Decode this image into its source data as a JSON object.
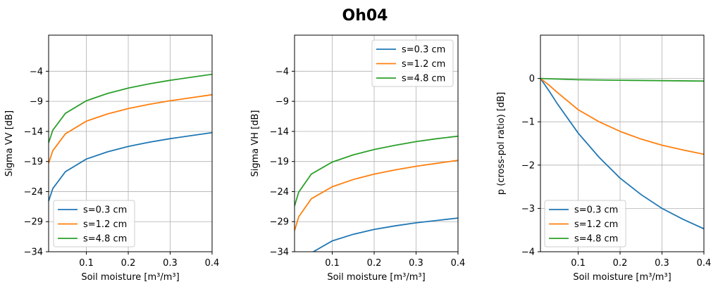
{
  "figure": {
    "suptitle": "Oh04"
  },
  "colors": {
    "s03": "#1f77b4",
    "s12": "#ff7f0e",
    "s48": "#2ca02c",
    "grid": "#b0b0b0"
  },
  "chart_data": [
    {
      "type": "line",
      "xlabel": "Soil moisture [m³/m³]",
      "ylabel": "Sigma VV [dB]",
      "xlim": [
        0.01,
        0.4
      ],
      "ylim": [
        -34,
        2
      ],
      "xticks": [
        0.1,
        0.2,
        0.3,
        0.4
      ],
      "yticks": [
        -34,
        -29,
        -24,
        -19,
        -14,
        -9,
        -4
      ],
      "grid": true,
      "legend_position": "lower-left",
      "series": [
        {
          "name": "s=0.3 cm",
          "color": "#1f77b4",
          "x": [
            0.01,
            0.02,
            0.05,
            0.1,
            0.15,
            0.2,
            0.25,
            0.3,
            0.35,
            0.4
          ],
          "y": [
            -25.6,
            -23.5,
            -20.7,
            -18.6,
            -17.4,
            -16.5,
            -15.8,
            -15.2,
            -14.7,
            -14.2
          ]
        },
        {
          "name": "s=1.2 cm",
          "color": "#ff7f0e",
          "x": [
            0.01,
            0.02,
            0.05,
            0.1,
            0.15,
            0.2,
            0.25,
            0.3,
            0.35,
            0.4
          ],
          "y": [
            -19.3,
            -17.2,
            -14.4,
            -12.3,
            -11.1,
            -10.2,
            -9.5,
            -8.9,
            -8.4,
            -7.9
          ]
        },
        {
          "name": "s=4.8 cm",
          "color": "#2ca02c",
          "x": [
            0.01,
            0.02,
            0.05,
            0.1,
            0.15,
            0.2,
            0.25,
            0.3,
            0.35,
            0.4
          ],
          "y": [
            -15.9,
            -13.8,
            -11.0,
            -8.9,
            -7.7,
            -6.8,
            -6.1,
            -5.5,
            -5.0,
            -4.5
          ]
        }
      ]
    },
    {
      "type": "line",
      "xlabel": "Soil moisture [m³/m³]",
      "ylabel": "Sigma VH [dB]",
      "xlim": [
        0.01,
        0.4
      ],
      "ylim": [
        -34,
        2
      ],
      "xticks": [
        0.1,
        0.2,
        0.3,
        0.4
      ],
      "yticks": [
        -34,
        -29,
        -24,
        -19,
        -14,
        -9,
        -4
      ],
      "grid": true,
      "legend_position": "upper-right",
      "series": [
        {
          "name": "s=0.3 cm",
          "color": "#1f77b4",
          "x": [
            0.05,
            0.1,
            0.15,
            0.2,
            0.25,
            0.3,
            0.35,
            0.4
          ],
          "y": [
            -34.2,
            -32.2,
            -31.1,
            -30.3,
            -29.7,
            -29.2,
            -28.8,
            -28.4
          ]
        },
        {
          "name": "s=1.2 cm",
          "color": "#ff7f0e",
          "x": [
            0.01,
            0.02,
            0.05,
            0.1,
            0.15,
            0.2,
            0.25,
            0.3,
            0.35,
            0.4
          ],
          "y": [
            -30.5,
            -28.2,
            -25.2,
            -23.2,
            -22.0,
            -21.1,
            -20.4,
            -19.8,
            -19.3,
            -18.8
          ]
        },
        {
          "name": "s=4.8 cm",
          "color": "#2ca02c",
          "x": [
            0.01,
            0.02,
            0.05,
            0.1,
            0.15,
            0.2,
            0.25,
            0.3,
            0.35,
            0.4
          ],
          "y": [
            -26.4,
            -24.1,
            -21.1,
            -19.1,
            -17.9,
            -17.0,
            -16.3,
            -15.7,
            -15.2,
            -14.8
          ]
        }
      ]
    },
    {
      "type": "line",
      "xlabel": "Soil moisture [m³/m³]",
      "ylabel": "p (cross-pol ratio) [dB]",
      "xlim": [
        0.01,
        0.4
      ],
      "ylim": [
        -4,
        1
      ],
      "xticks": [
        0.1,
        0.2,
        0.3,
        0.4
      ],
      "yticks": [
        -4,
        -3,
        -2,
        -1,
        0
      ],
      "grid": true,
      "legend_position": "lower-left",
      "series": [
        {
          "name": "s=0.3 cm",
          "color": "#1f77b4",
          "x": [
            0.01,
            0.03,
            0.05,
            0.1,
            0.15,
            0.2,
            0.25,
            0.3,
            0.35,
            0.4
          ],
          "y": [
            0.0,
            -0.28,
            -0.58,
            -1.26,
            -1.82,
            -2.3,
            -2.68,
            -3.0,
            -3.25,
            -3.47
          ]
        },
        {
          "name": "s=1.2 cm",
          "color": "#ff7f0e",
          "x": [
            0.01,
            0.03,
            0.05,
            0.1,
            0.15,
            0.2,
            0.25,
            0.3,
            0.35,
            0.4
          ],
          "y": [
            0.0,
            -0.15,
            -0.32,
            -0.72,
            -1.0,
            -1.22,
            -1.4,
            -1.54,
            -1.65,
            -1.75
          ]
        },
        {
          "name": "s=4.8 cm",
          "color": "#2ca02c",
          "x": [
            0.01,
            0.1,
            0.2,
            0.3,
            0.4
          ],
          "y": [
            0.0,
            -0.03,
            -0.04,
            -0.05,
            -0.06
          ]
        }
      ]
    }
  ]
}
